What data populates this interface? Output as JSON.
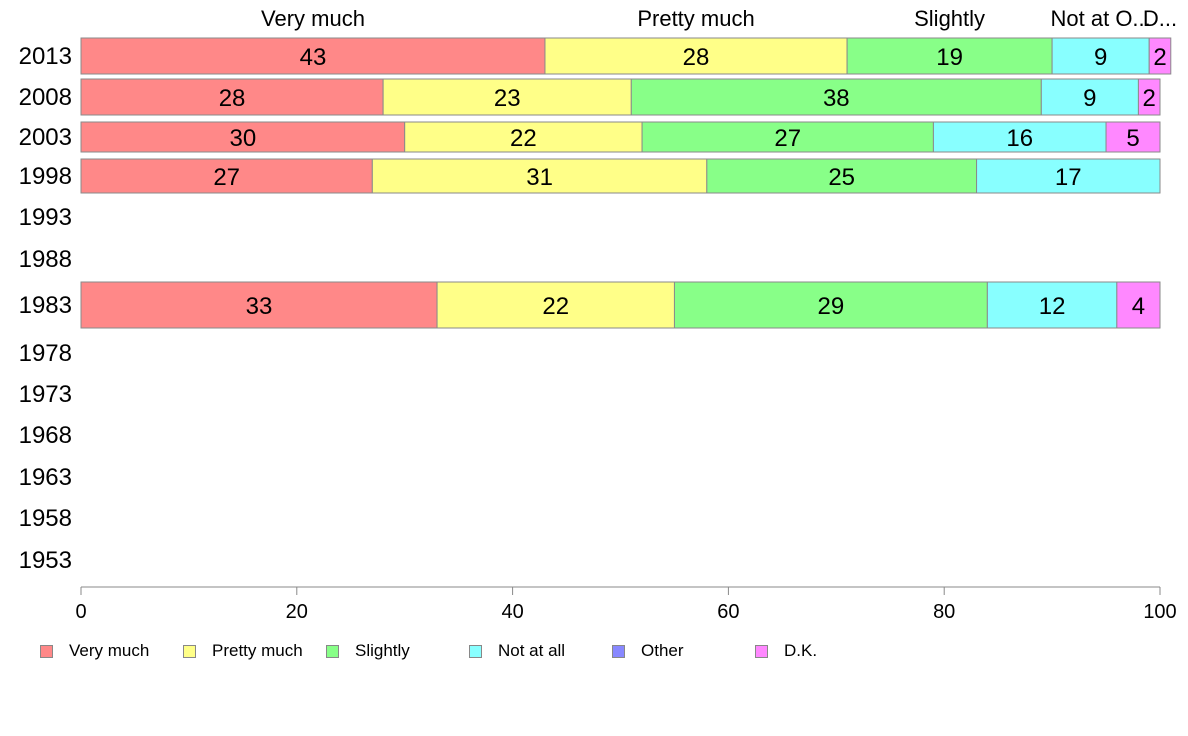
{
  "chart_data": {
    "type": "bar",
    "orientation": "horizontal",
    "stacked": true,
    "categories": [
      "2013",
      "2008",
      "2003",
      "1998",
      "1993",
      "1988",
      "1983",
      "1978",
      "1973",
      "1968",
      "1963",
      "1958",
      "1953"
    ],
    "series": [
      {
        "name": "Very much",
        "color": "#ff8888",
        "values": [
          43,
          28,
          30,
          27,
          null,
          null,
          33,
          null,
          null,
          null,
          null,
          null,
          null
        ]
      },
      {
        "name": "Pretty much",
        "color": "#ffff88",
        "values": [
          28,
          23,
          22,
          31,
          null,
          null,
          22,
          null,
          null,
          null,
          null,
          null,
          null
        ]
      },
      {
        "name": "Slightly",
        "color": "#88ff88",
        "values": [
          19,
          38,
          27,
          25,
          null,
          null,
          29,
          null,
          null,
          null,
          null,
          null,
          null
        ]
      },
      {
        "name": "Not at all",
        "color": "#88ffff",
        "values": [
          9,
          9,
          16,
          17,
          null,
          null,
          12,
          null,
          null,
          null,
          null,
          null,
          null
        ]
      },
      {
        "name": "Other",
        "color": "#8888ff",
        "values": [
          0,
          0,
          0,
          0,
          null,
          null,
          0,
          null,
          null,
          null,
          null,
          null,
          null
        ]
      },
      {
        "name": "D.K.",
        "color": "#ff88ff",
        "values": [
          2,
          2,
          5,
          0,
          null,
          null,
          4,
          null,
          null,
          null,
          null,
          null,
          null
        ]
      }
    ],
    "top_labels": [
      "Very much",
      "Pretty much",
      "Slightly",
      "Not at O...",
      "D..."
    ],
    "xlim": [
      0,
      100
    ],
    "x_ticks": [
      "0",
      "20",
      "40",
      "60",
      "80",
      "100"
    ],
    "grid": false,
    "legend_position": "bottom-left"
  }
}
